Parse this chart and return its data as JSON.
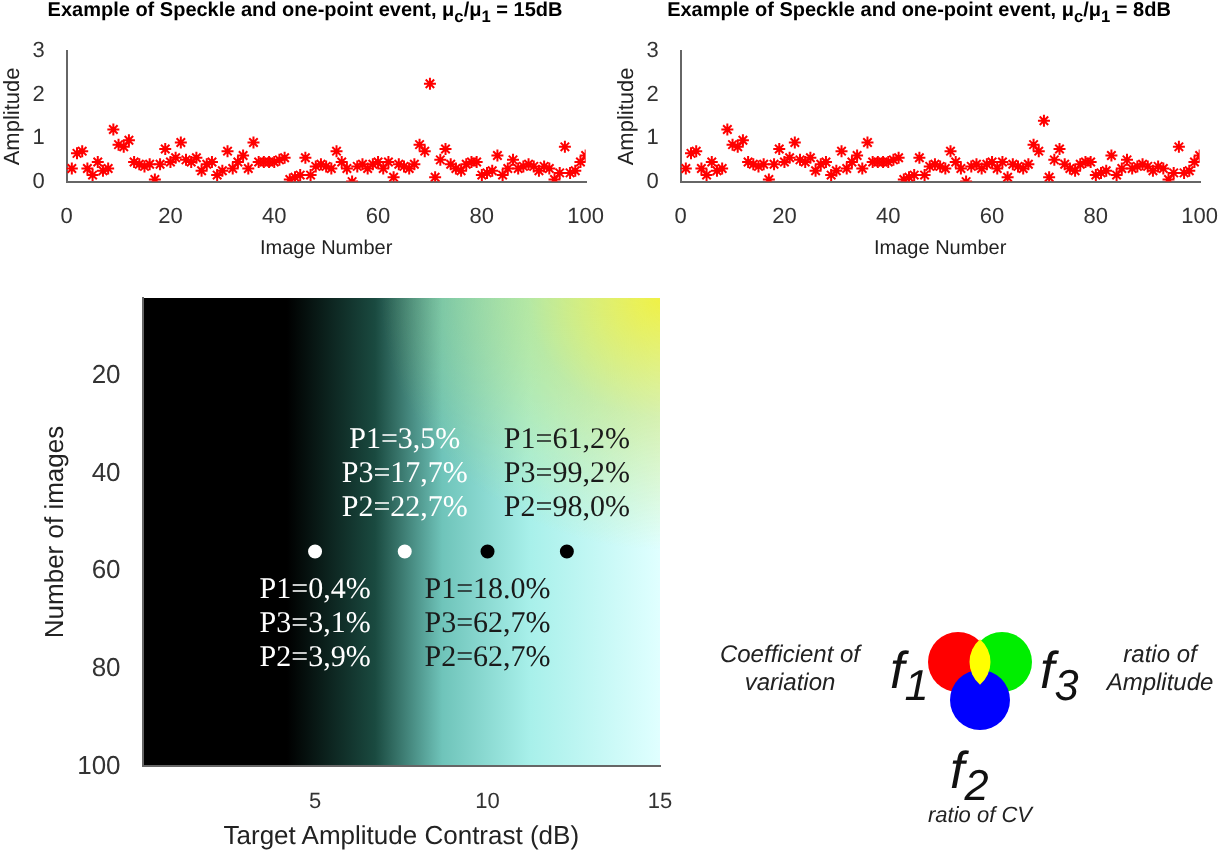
{
  "chart_data": [
    {
      "type": "scatter",
      "title": "Example of Speckle and one-point event, μ$_{c}$/μ$_{1}$ = 15dB",
      "xlabel": "Image Number",
      "ylabel": "Amplitude",
      "xlim": [
        0,
        100
      ],
      "xticks": [
        0,
        20,
        40,
        60,
        80,
        100
      ],
      "ylim": [
        0,
        3
      ],
      "yticks": [
        0,
        1,
        2,
        3
      ],
      "marker": "cross",
      "grid": false,
      "legend": false,
      "x": [
        1,
        2,
        3,
        4,
        5,
        6,
        7,
        8,
        9,
        10,
        11,
        12,
        13,
        14,
        15,
        16,
        17,
        18,
        19,
        20,
        21,
        22,
        23,
        24,
        25,
        26,
        27,
        28,
        29,
        30,
        31,
        32,
        33,
        34,
        35,
        36,
        37,
        38,
        39,
        40,
        41,
        42,
        43,
        44,
        45,
        46,
        47,
        48,
        49,
        50,
        51,
        52,
        53,
        54,
        55,
        56,
        57,
        58,
        59,
        60,
        61,
        62,
        63,
        64,
        65,
        66,
        67,
        68,
        69,
        70,
        71,
        72,
        73,
        74,
        75,
        76,
        77,
        78,
        79,
        80,
        81,
        82,
        83,
        84,
        85,
        86,
        87,
        88,
        89,
        90,
        91,
        92,
        93,
        94,
        95,
        96,
        97,
        98,
        99,
        100
      ],
      "series": [
        {
          "color": "#ff0000",
          "values": [
            0.3,
            0.65,
            0.7,
            0.3,
            0.15,
            0.45,
            0.25,
            0.3,
            1.2,
            0.85,
            0.8,
            0.95,
            0.45,
            0.4,
            0.35,
            0.4,
            0.05,
            0.4,
            0.75,
            0.45,
            0.55,
            0.9,
            0.5,
            0.45,
            0.55,
            0.25,
            0.4,
            0.45,
            0.15,
            0.25,
            0.7,
            0.3,
            0.45,
            0.6,
            0.3,
            0.9,
            0.45,
            0.45,
            0.45,
            0.45,
            0.5,
            0.55,
            0.05,
            0.1,
            0.15,
            0.55,
            0.15,
            0.35,
            0.4,
            0.35,
            0.3,
            0.7,
            0.45,
            0.3,
            0.0,
            0.35,
            0.4,
            0.3,
            0.4,
            0.45,
            0.3,
            0.45,
            0.1,
            0.4,
            0.35,
            0.3,
            0.4,
            0.85,
            0.7,
            2.25,
            0.1,
            0.5,
            0.75,
            0.4,
            0.3,
            0.25,
            0.4,
            0.45,
            0.45,
            0.15,
            0.2,
            0.25,
            0.6,
            0.15,
            0.3,
            0.5,
            0.3,
            0.35,
            0.4,
            0.35,
            0.25,
            0.35,
            0.3,
            0.05,
            0.2,
            0.8,
            0.2,
            0.25,
            0.45,
            0.6
          ]
        }
      ]
    },
    {
      "type": "scatter",
      "title": "Example of Speckle and one-point event, μ$_{c}$/μ$_{1}$ = 8dB",
      "xlabel": "Image Number",
      "ylabel": "Amplitude",
      "xlim": [
        0,
        100
      ],
      "xticks": [
        0,
        20,
        40,
        60,
        80,
        100
      ],
      "ylim": [
        0,
        3
      ],
      "yticks": [
        0,
        1,
        2,
        3
      ],
      "marker": "cross",
      "grid": false,
      "legend": false,
      "x": [
        1,
        2,
        3,
        4,
        5,
        6,
        7,
        8,
        9,
        10,
        11,
        12,
        13,
        14,
        15,
        16,
        17,
        18,
        19,
        20,
        21,
        22,
        23,
        24,
        25,
        26,
        27,
        28,
        29,
        30,
        31,
        32,
        33,
        34,
        35,
        36,
        37,
        38,
        39,
        40,
        41,
        42,
        43,
        44,
        45,
        46,
        47,
        48,
        49,
        50,
        51,
        52,
        53,
        54,
        55,
        56,
        57,
        58,
        59,
        60,
        61,
        62,
        63,
        64,
        65,
        66,
        67,
        68,
        69,
        70,
        71,
        72,
        73,
        74,
        75,
        76,
        77,
        78,
        79,
        80,
        81,
        82,
        83,
        84,
        85,
        86,
        87,
        88,
        89,
        90,
        91,
        92,
        93,
        94,
        95,
        96,
        97,
        98,
        99,
        100
      ],
      "series": [
        {
          "color": "#ff0000",
          "values": [
            0.3,
            0.65,
            0.7,
            0.3,
            0.15,
            0.45,
            0.25,
            0.3,
            1.2,
            0.85,
            0.8,
            0.95,
            0.45,
            0.4,
            0.35,
            0.4,
            0.05,
            0.4,
            0.75,
            0.45,
            0.55,
            0.9,
            0.5,
            0.45,
            0.55,
            0.25,
            0.4,
            0.45,
            0.15,
            0.25,
            0.7,
            0.3,
            0.45,
            0.6,
            0.3,
            0.9,
            0.45,
            0.45,
            0.45,
            0.45,
            0.5,
            0.55,
            0.05,
            0.1,
            0.15,
            0.55,
            0.15,
            0.35,
            0.4,
            0.35,
            0.3,
            0.7,
            0.45,
            0.3,
            0.0,
            0.35,
            0.4,
            0.3,
            0.4,
            0.45,
            0.3,
            0.45,
            0.1,
            0.4,
            0.35,
            0.3,
            0.4,
            0.85,
            0.7,
            1.4,
            0.1,
            0.5,
            0.75,
            0.4,
            0.3,
            0.25,
            0.4,
            0.45,
            0.45,
            0.15,
            0.2,
            0.25,
            0.6,
            0.15,
            0.3,
            0.5,
            0.3,
            0.35,
            0.4,
            0.35,
            0.25,
            0.35,
            0.3,
            0.05,
            0.2,
            0.8,
            0.2,
            0.25,
            0.45,
            0.6
          ]
        }
      ]
    },
    {
      "type": "scatter",
      "xlabel": "Target Amplitude Contrast (dB)",
      "ylabel": "Number of images",
      "xlim": [
        0,
        15
      ],
      "xticks": [
        5,
        10,
        15
      ],
      "ylim": [
        100,
        4
      ],
      "yticks": [
        20,
        40,
        60,
        80,
        100
      ],
      "marker": "circle",
      "grid": false,
      "legend": false,
      "x": [
        5,
        7.6,
        10,
        12.3
      ],
      "series": [
        {
          "values": [
            56,
            56,
            56,
            56
          ],
          "colors": [
            "#ffffff",
            "#ffffff",
            "#000000",
            "#000000"
          ]
        }
      ],
      "annotations": [
        {
          "text": "P1=0,4%\nP3=3,1%\nP2=3,9%",
          "x": 5,
          "y": 56
        },
        {
          "text": "P1=3,5%\nP3=17,7%\nP2=22,7%",
          "x": 7.6,
          "y": 56
        },
        {
          "text": "P1=18.0%\nP3=62,7%\nP2=62,7%",
          "x": 10,
          "y": 56
        },
        {
          "text": "P1=61,2%\nP3=99,2%\nP2=98,0%",
          "x": 12.3,
          "y": 56
        }
      ]
    },
    {
      "type": "other",
      "annotations": [
        "Coefficient of variation",
        "f$_{1}$",
        "f$_{3}$",
        "ratio of Amplitude",
        "f$_{2}$",
        "ratio of CV"
      ]
    }
  ]
}
